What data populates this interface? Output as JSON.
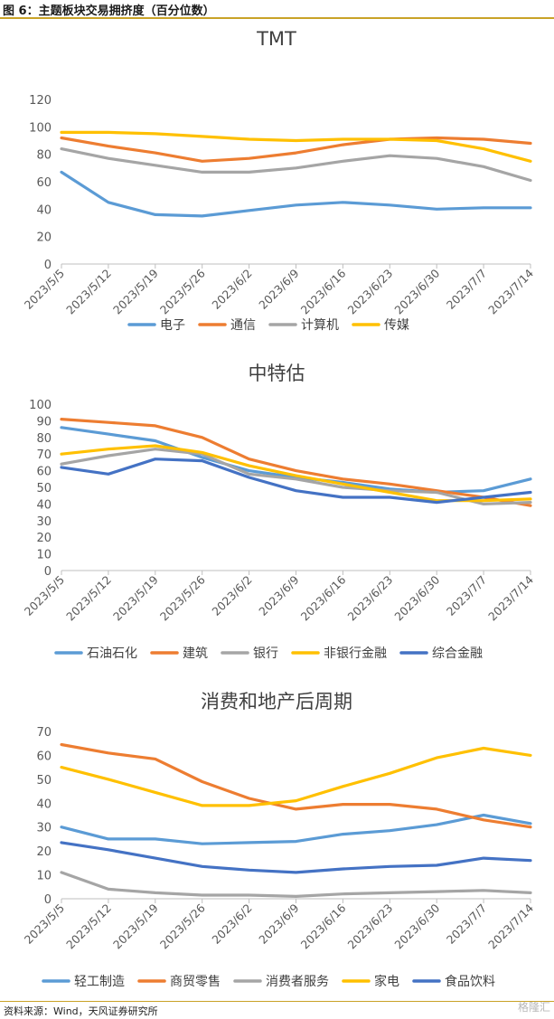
{
  "figure": {
    "title": "图 6：主题板块交易拥挤度（百分位数）",
    "source": "资料来源：Wind，天风证券研究所",
    "watermark": "格隆汇"
  },
  "chart_data": [
    {
      "type": "line",
      "title": "TMT",
      "categories": [
        "2023/5/5",
        "2023/5/12",
        "2023/5/19",
        "2023/5/26",
        "2023/6/2",
        "2023/6/9",
        "2023/6/16",
        "2023/6/23",
        "2023/6/30",
        "2023/7/7",
        "2023/7/14"
      ],
      "ylim": [
        0,
        120
      ],
      "yticks": [
        0,
        20,
        40,
        60,
        80,
        100,
        120
      ],
      "grid": false,
      "legend": "bottom",
      "series": [
        {
          "name": "电子",
          "color": "#5b9bd5",
          "values": [
            67,
            45,
            36,
            35,
            39,
            43,
            45,
            43,
            40,
            41,
            41
          ]
        },
        {
          "name": "通信",
          "color": "#ed7d31",
          "values": [
            92,
            86,
            81,
            75,
            77,
            81,
            87,
            91,
            92,
            91,
            88
          ]
        },
        {
          "name": "计算机",
          "color": "#a5a5a5",
          "values": [
            84,
            77,
            72,
            67,
            67,
            70,
            75,
            79,
            77,
            71,
            61
          ]
        },
        {
          "name": "传媒",
          "color": "#ffc000",
          "values": [
            96,
            96,
            95,
            93,
            91,
            90,
            91,
            91,
            90,
            84,
            75
          ]
        }
      ]
    },
    {
      "type": "line",
      "title": "中特估",
      "categories": [
        "2023/5/5",
        "2023/5/12",
        "2023/5/19",
        "2023/5/26",
        "2023/6/2",
        "2023/6/9",
        "2023/6/16",
        "2023/6/23",
        "2023/6/30",
        "2023/7/7",
        "2023/7/14"
      ],
      "ylim": [
        0,
        100
      ],
      "yticks": [
        0,
        10,
        20,
        30,
        40,
        50,
        60,
        70,
        80,
        90,
        100
      ],
      "grid": false,
      "legend": "bottom",
      "series": [
        {
          "name": "石油石化",
          "color": "#5b9bd5",
          "values": [
            86,
            82,
            78,
            68,
            60,
            56,
            53,
            49,
            47,
            48,
            55
          ]
        },
        {
          "name": "建筑",
          "color": "#ed7d31",
          "values": [
            91,
            89,
            87,
            80,
            67,
            60,
            55,
            52,
            48,
            44,
            39
          ]
        },
        {
          "name": "银行",
          "color": "#a5a5a5",
          "values": [
            64,
            69,
            73,
            70,
            58,
            55,
            50,
            48,
            47,
            40,
            41
          ]
        },
        {
          "name": "非银行金融",
          "color": "#ffc000",
          "values": [
            70,
            73,
            75,
            71,
            63,
            57,
            52,
            47,
            42,
            42,
            43
          ]
        },
        {
          "name": "综合金融",
          "color": "#4472c4",
          "values": [
            62,
            58,
            67,
            66,
            56,
            48,
            44,
            44,
            41,
            44,
            47
          ]
        }
      ]
    },
    {
      "type": "line",
      "title": "消费和地产后周期",
      "categories": [
        "2023/5/5",
        "2023/5/12",
        "2023/5/19",
        "2023/5/26",
        "2023/6/2",
        "2023/6/9",
        "2023/6/16",
        "2023/6/23",
        "2023/6/30",
        "2023/7/7",
        "2023/7/14"
      ],
      "ylim": [
        0,
        70
      ],
      "yticks": [
        0,
        10,
        20,
        30,
        40,
        50,
        60,
        70
      ],
      "grid": false,
      "legend": "bottom",
      "series": [
        {
          "name": "轻工制造",
          "color": "#5b9bd5",
          "values": [
            30,
            25,
            25,
            23,
            23.5,
            24,
            27,
            28.5,
            31,
            35,
            31.5
          ]
        },
        {
          "name": "商贸零售",
          "color": "#ed7d31",
          "values": [
            64.5,
            61,
            58.5,
            49,
            42,
            37.5,
            39.5,
            39.5,
            37.5,
            33,
            30
          ]
        },
        {
          "name": "消费者服务",
          "color": "#a5a5a5",
          "values": [
            11,
            4,
            2.5,
            1.5,
            1.5,
            1,
            2,
            2.5,
            3,
            3.5,
            2.5
          ]
        },
        {
          "name": "家电",
          "color": "#ffc000",
          "values": [
            55,
            50,
            44.5,
            39,
            39,
            41,
            47,
            52.5,
            59,
            63,
            60
          ]
        },
        {
          "name": "食品饮料",
          "color": "#4472c4",
          "values": [
            23.5,
            20.5,
            17,
            13.5,
            12,
            11,
            12.5,
            13.5,
            14,
            17,
            16
          ]
        }
      ]
    }
  ]
}
